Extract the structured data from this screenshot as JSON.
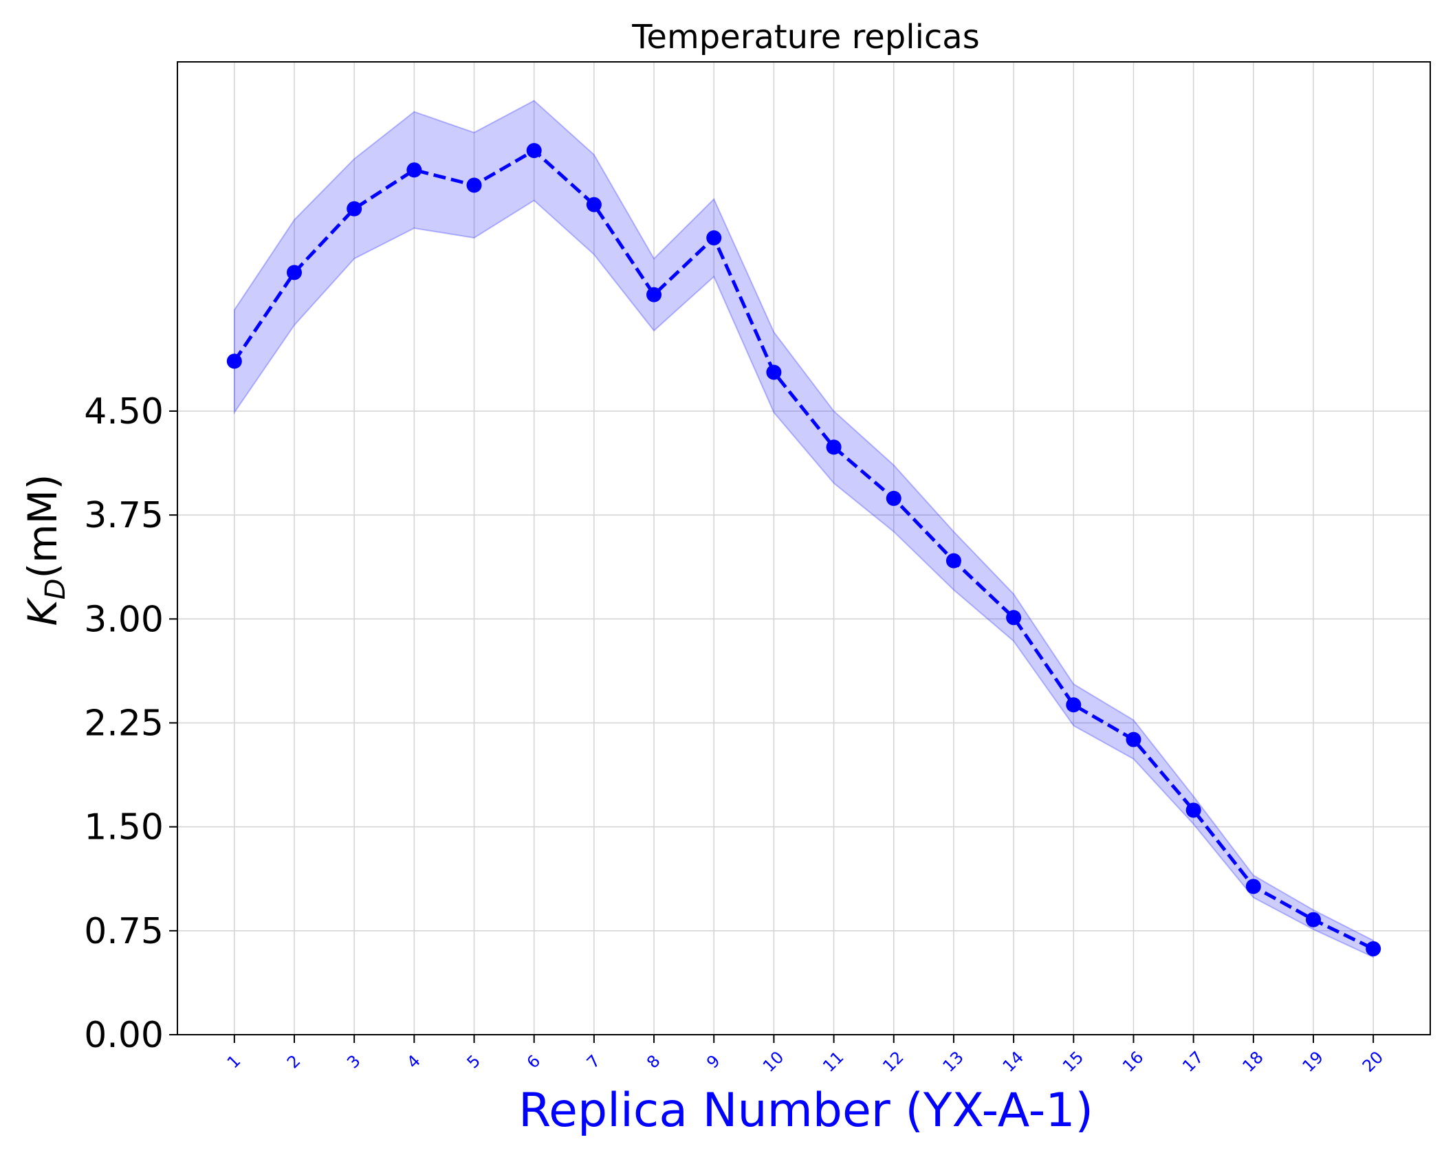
{
  "chart_data": {
    "type": "line",
    "title": "Temperature replicas",
    "xlabel": "Replica Number (YX-A-1)",
    "ylabel": {
      "symbol": "K",
      "subscript": "D",
      "unit": "(mM)"
    },
    "categories": [
      "1",
      "2",
      "3",
      "4",
      "5",
      "6",
      "7",
      "8",
      "9",
      "10",
      "11",
      "12",
      "13",
      "14",
      "15",
      "16",
      "17",
      "18",
      "19",
      "20"
    ],
    "series": [
      {
        "values": [
          4.86,
          5.5,
          5.96,
          6.24,
          6.13,
          6.38,
          5.99,
          5.34,
          5.75,
          4.78,
          4.24,
          3.87,
          3.42,
          3.01,
          2.38,
          2.13,
          1.62,
          1.07,
          0.83,
          0.62
        ],
        "lower": [
          4.49,
          5.12,
          5.6,
          5.82,
          5.75,
          6.02,
          5.63,
          5.08,
          5.47,
          4.49,
          3.98,
          3.63,
          3.21,
          2.84,
          2.23,
          1.99,
          1.52,
          0.99,
          0.76,
          0.56
        ],
        "upper": [
          5.23,
          5.88,
          6.32,
          6.66,
          6.51,
          6.74,
          6.35,
          5.6,
          6.03,
          5.07,
          4.5,
          4.11,
          3.63,
          3.18,
          2.53,
          2.27,
          1.72,
          1.15,
          0.9,
          0.68
        ]
      }
    ],
    "yticks": [
      "0.00",
      "0.75",
      "1.50",
      "2.25",
      "3.00",
      "3.75",
      "4.50"
    ],
    "ytick_values": [
      0,
      0.75,
      1.5,
      2.25,
      3.0,
      3.75,
      4.5
    ],
    "ylim": [
      0,
      7.02
    ],
    "xlim": [
      0.05,
      20.95
    ],
    "grid": true,
    "colors": {
      "line": "#0000ff",
      "band": "#0000ff",
      "xlabel": "#0000ff",
      "xticks": "#0000ff",
      "grid": "#d3d3d3",
      "axes": "#000000"
    }
  }
}
